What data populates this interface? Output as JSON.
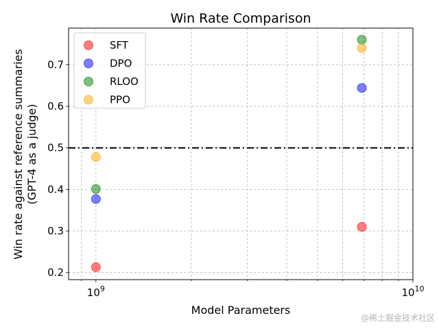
{
  "chart_data": {
    "type": "scatter",
    "title": "Win Rate Comparison",
    "xlabel": "Model Parameters",
    "ylabel": [
      "Win rate against reference summaries",
      "(GPT-4 as a judge)"
    ],
    "xscale": "log",
    "xlim": [
      820000000,
      10000000000
    ],
    "ylim": [
      0.183,
      0.788
    ],
    "x_ticks": [
      {
        "value": 1000000000,
        "base": "10",
        "exp": "9"
      },
      {
        "value": 10000000000,
        "base": "10",
        "exp": "10"
      }
    ],
    "y_ticks": [
      {
        "value": 0.2,
        "label": "0.2"
      },
      {
        "value": 0.3,
        "label": "0.3"
      },
      {
        "value": 0.4,
        "label": "0.4"
      },
      {
        "value": 0.5,
        "label": "0.5"
      },
      {
        "value": 0.6,
        "label": "0.6"
      },
      {
        "value": 0.7,
        "label": "0.7"
      }
    ],
    "grid": true,
    "legend_position": "top-left",
    "reference_line": {
      "y": 0.5,
      "style": "dash-dot",
      "color": "#000000"
    },
    "series": [
      {
        "name": "SFT",
        "color": "#ff0000",
        "points": [
          {
            "x": 1000000000,
            "y": 0.213
          },
          {
            "x": 6900000000,
            "y": 0.31
          }
        ]
      },
      {
        "name": "DPO",
        "color": "#0000ff",
        "points": [
          {
            "x": 1000000000,
            "y": 0.377
          },
          {
            "x": 6900000000,
            "y": 0.644
          }
        ]
      },
      {
        "name": "RLOO",
        "color": "#008000",
        "points": [
          {
            "x": 1000000000,
            "y": 0.401
          },
          {
            "x": 6900000000,
            "y": 0.76
          }
        ]
      },
      {
        "name": "PPO",
        "color": "#ffa500",
        "points": [
          {
            "x": 1000000000,
            "y": 0.478
          },
          {
            "x": 6900000000,
            "y": 0.74
          }
        ]
      }
    ]
  },
  "watermark": "@稀土掘金技术社区"
}
